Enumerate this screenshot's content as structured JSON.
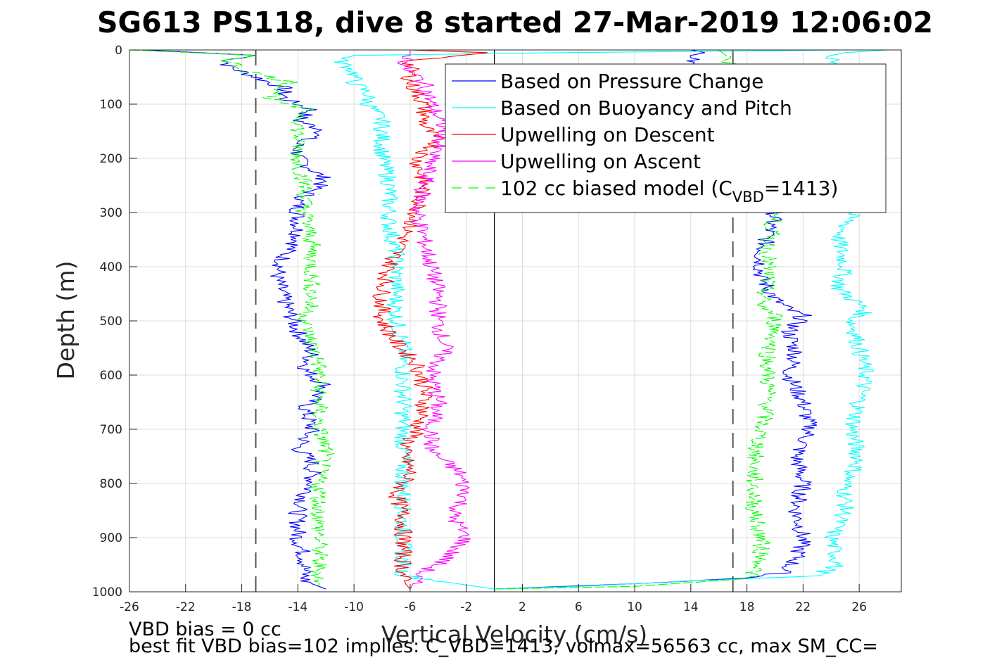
{
  "chart_data": {
    "type": "line",
    "title": "SG613 PS118, dive 8 started 27-Mar-2019 12:06:02",
    "xlabel": "Vertical Velocity (cm/s)",
    "ylabel": "Depth (m)",
    "xlim": [
      -26,
      29
    ],
    "ylim": [
      0,
      1000
    ],
    "y_reversed": true,
    "grid": true,
    "xticks": [
      -26,
      -22,
      -18,
      -14,
      -10,
      -6,
      -2,
      2,
      6,
      10,
      14,
      18,
      22,
      26
    ],
    "yticks": [
      0,
      100,
      200,
      300,
      400,
      500,
      600,
      700,
      800,
      900,
      1000
    ],
    "reference_lines": {
      "zero_line_x": 0,
      "dashed_model_bounds_x": [
        -17,
        17
      ]
    },
    "legend": {
      "placement": "top-right",
      "entries": [
        {
          "label": "Based on Pressure Change",
          "color": "#0000ff",
          "style": "solid"
        },
        {
          "label": "Based on Buoyancy and Pitch",
          "color": "#00ffff",
          "style": "solid"
        },
        {
          "label": "Upwelling on Descent",
          "color": "#ff0000",
          "style": "solid"
        },
        {
          "label": "Upwelling on Ascent",
          "color": "#ff00ff",
          "style": "solid"
        },
        {
          "label": "102 cc biased model (C",
          "sub": "VBD",
          "suffix": "=1413)",
          "color": "#00ff00",
          "style": "dashed"
        }
      ]
    },
    "series": [
      {
        "name": "Based on Pressure Change (descent)",
        "color": "#0000ff",
        "depth": [
          0,
          10,
          20,
          30,
          50,
          70,
          90,
          110,
          130,
          150,
          170,
          200,
          240,
          280,
          320,
          350,
          380,
          420,
          460,
          490,
          520,
          560,
          590,
          620,
          660,
          700,
          735,
          760,
          800,
          850,
          900,
          940,
          980,
          995
        ],
        "values": [
          -25,
          -17,
          -19,
          -19,
          -17,
          -15,
          -15,
          -13,
          -14,
          -12,
          -14,
          -14,
          -12,
          -14,
          -14,
          -14,
          -15,
          -15.5,
          -15,
          -14.5,
          -14,
          -13,
          -13.5,
          -12,
          -13.5,
          -13,
          -14,
          -13,
          -13,
          -14,
          -14,
          -13.5,
          -13.5,
          -12
        ]
      },
      {
        "name": "Based on Pressure Change (ascent)",
        "color": "#0000ff",
        "depth": [
          0,
          5,
          10,
          300,
          340,
          380,
          420,
          460,
          480,
          490,
          520,
          560,
          600,
          650,
          700,
          750,
          800,
          850,
          900,
          940,
          965,
          975,
          985,
          995
        ],
        "values": [
          14,
          15,
          14,
          20,
          19.5,
          19,
          19,
          20,
          21,
          22,
          21,
          21.5,
          21,
          22,
          22.5,
          21.5,
          22,
          21.5,
          22,
          21.5,
          20.5,
          18,
          10,
          0
        ]
      },
      {
        "name": "Based on Buoyancy and Pitch (descent)",
        "color": "#00ffff",
        "depth": [
          0,
          5,
          10,
          20,
          40,
          60,
          80,
          100,
          130,
          160,
          200,
          240,
          280,
          320,
          380,
          420,
          460,
          500,
          540,
          580,
          620,
          680,
          730,
          780,
          830,
          880,
          930,
          970,
          995
        ],
        "values": [
          25,
          5,
          -10,
          -11,
          -10,
          -10,
          -9,
          -9,
          -8,
          -8,
          -8,
          -7.5,
          -7.5,
          -7.5,
          -7,
          -7,
          -7,
          -7,
          -6.5,
          -6.5,
          -6.5,
          -6.5,
          -6.5,
          -6.5,
          -6.5,
          -6.5,
          -6.5,
          -6.5,
          0
        ]
      },
      {
        "name": "Based on Buoyancy and Pitch (ascent)",
        "color": "#00ffff",
        "depth": [
          0,
          5,
          10,
          300,
          350,
          400,
          440,
          480,
          500,
          550,
          600,
          650,
          700,
          760,
          800,
          850,
          900,
          950,
          970,
          980,
          990,
          995
        ],
        "values": [
          28,
          25,
          24,
          25.5,
          24.5,
          25,
          24.5,
          26.5,
          25.5,
          26,
          26.5,
          26,
          25.5,
          26,
          25,
          25,
          24,
          24.5,
          23,
          14,
          6,
          0
        ]
      },
      {
        "name": "Upwelling on Descent",
        "color": "#ff0000",
        "depth": [
          0,
          5,
          20,
          60,
          100,
          140,
          170,
          200,
          250,
          300,
          350,
          400,
          450,
          500,
          540,
          580,
          620,
          660,
          700,
          740,
          780,
          820,
          860,
          900,
          940,
          980,
          995
        ],
        "values": [
          -6,
          -0.5,
          -6,
          -6,
          -5,
          -5,
          -4,
          -5.5,
          -5,
          -5.5,
          -6.5,
          -7.5,
          -8,
          -8,
          -7,
          -5.5,
          -5,
          -5,
          -5.5,
          -6.5,
          -6,
          -7,
          -6.5,
          -6.5,
          -6.5,
          -6.5,
          -6
        ]
      },
      {
        "name": "Upwelling on Ascent",
        "color": "#ff00ff",
        "depth": [
          0,
          10,
          30,
          60,
          100,
          150,
          200,
          250,
          300,
          350,
          400,
          450,
          500,
          550,
          600,
          650,
          700,
          740,
          780,
          820,
          860,
          900,
          940,
          970,
          995
        ],
        "values": [
          -6,
          -6,
          -6.5,
          -5,
          -4.5,
          -3.5,
          -4.5,
          -5,
          -5.5,
          -5,
          -4.5,
          -4,
          -4,
          -3.5,
          -4.5,
          -4,
          -4.5,
          -4.5,
          -2.5,
          -2,
          -3,
          -2,
          -3.5,
          -5.5,
          -6
        ]
      },
      {
        "name": "102 cc biased model (descent)",
        "color": "#00ff00",
        "dashed": true,
        "depth": [
          0,
          10,
          20,
          40,
          60,
          90,
          110,
          150,
          200,
          250,
          300,
          360,
          420,
          460,
          500,
          540,
          580,
          620,
          660,
          700,
          740,
          780,
          820,
          860,
          900,
          940,
          990
        ],
        "values": [
          -26,
          -17,
          -19,
          -17.5,
          -14.5,
          -16,
          -13.5,
          -14,
          -14,
          -13.5,
          -13.5,
          -13,
          -13,
          -13,
          -13.5,
          -13,
          -12.5,
          -12.5,
          -12.5,
          -12.5,
          -12,
          -12.5,
          -12.5,
          -12.5,
          -12.5,
          -12.5,
          -12.5
        ]
      },
      {
        "name": "102 cc biased model (ascent)",
        "color": "#00ff00",
        "dashed": true,
        "depth": [
          0,
          10,
          300,
          360,
          420,
          470,
          490,
          520,
          560,
          600,
          650,
          700,
          760,
          800,
          850,
          900,
          950,
          975,
          990,
          995
        ],
        "values": [
          16,
          16.5,
          20,
          19.5,
          19.5,
          19,
          20,
          20,
          19.5,
          19.5,
          19.5,
          19,
          18.5,
          18.5,
          18.5,
          19,
          19,
          18,
          10,
          0
        ]
      }
    ],
    "annotations": [
      "VBD bias = 0 cc",
      "best fit VBD bias=102 implies: C_VBD=1413, volmax=56563 cc, max SM_CC="
    ]
  }
}
